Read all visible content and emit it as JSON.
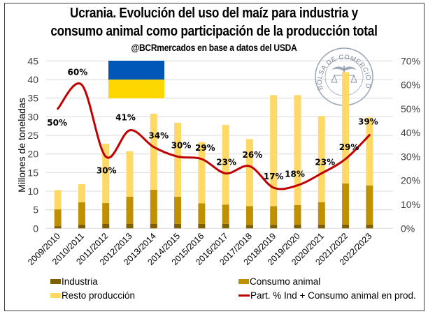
{
  "colors": {
    "industria": "#7F6000",
    "consumo": "#BF9000",
    "resto": "#FFD966",
    "line": "#C00000",
    "grid": "#D9D9D9",
    "flag_blue": "#0057B7",
    "flag_yellow": "#FFD700"
  },
  "chart_data": {
    "type": "bar",
    "stacked": true,
    "title": "Ucrania. Evolución del uso del maíz para industria y",
    "title_line2": "consumo animal como participación de la producción total",
    "subtitle": "@BCRmercados en base a datos del USDA",
    "xlabel": "",
    "ylabel": "Millones de toneladas",
    "ylim": [
      0,
      45
    ],
    "yticks": [
      0,
      5,
      10,
      15,
      20,
      25,
      30,
      35,
      40,
      45
    ],
    "y2lim": [
      0,
      70
    ],
    "y2ticks": [
      "0%",
      "10%",
      "20%",
      "30%",
      "40%",
      "50%",
      "60%",
      "70%"
    ],
    "grid": true,
    "legend_position": "bottom",
    "categories": [
      "2009/2010",
      "2010/2011",
      "2011/2012",
      "2012/2013",
      "2013/2014",
      "2014/2015",
      "2015/2016",
      "2016/2017",
      "2017/2018",
      "2018/2019",
      "2019/2020",
      "2020/2021",
      "2021/2022",
      "2022/2023"
    ],
    "series": [
      {
        "name": "Industria",
        "type": "bar",
        "values": [
          0.6,
          1.0,
          1.25,
          1.25,
          1.25,
          1.2,
          1.2,
          1.2,
          0.95,
          0.95,
          1.0,
          1.0,
          1.0,
          1.0
        ]
      },
      {
        "name": "Consumo animal",
        "type": "bar",
        "values": [
          4.5,
          6.0,
          5.55,
          7.25,
          9.15,
          7.3,
          5.55,
          5.2,
          5.05,
          5.05,
          5.25,
          6.05,
          11.05,
          10.55
        ]
      },
      {
        "name": "Resto producción",
        "type": "bar",
        "values": [
          5.2,
          4.9,
          15.95,
          12.25,
          20.4,
          19.9,
          16.45,
          21.4,
          18.0,
          29.8,
          29.55,
          23.15,
          29.95,
          18.25
        ]
      },
      {
        "name": "Part. % Ind + Consumo animal en prod.",
        "type": "line",
        "axis": "right",
        "values": [
          50,
          60,
          30,
          41,
          34,
          30,
          29,
          23,
          26,
          17,
          18,
          23,
          29,
          39
        ],
        "labels": [
          "50%",
          "60%",
          "30%",
          "41%",
          "34%",
          "30%",
          "29%",
          "23%",
          "26%",
          "17%",
          "18%",
          "23%",
          "29%",
          "39%"
        ]
      }
    ],
    "annotations": [
      "Ukraine flag",
      "Bolsa de Comercio de Rosario seal"
    ]
  },
  "seal_text": "BOLSA DE COMERCIO DE ROSARIO",
  "legend": [
    {
      "label": "Industria",
      "kind": "box",
      "color_key": "industria"
    },
    {
      "label": "Consumo animal",
      "kind": "box",
      "color_key": "consumo"
    },
    {
      "label": "Resto producción",
      "kind": "box",
      "color_key": "resto"
    },
    {
      "label": "Part. % Ind + Consumo animal en prod.",
      "kind": "line",
      "color_key": "line"
    }
  ]
}
